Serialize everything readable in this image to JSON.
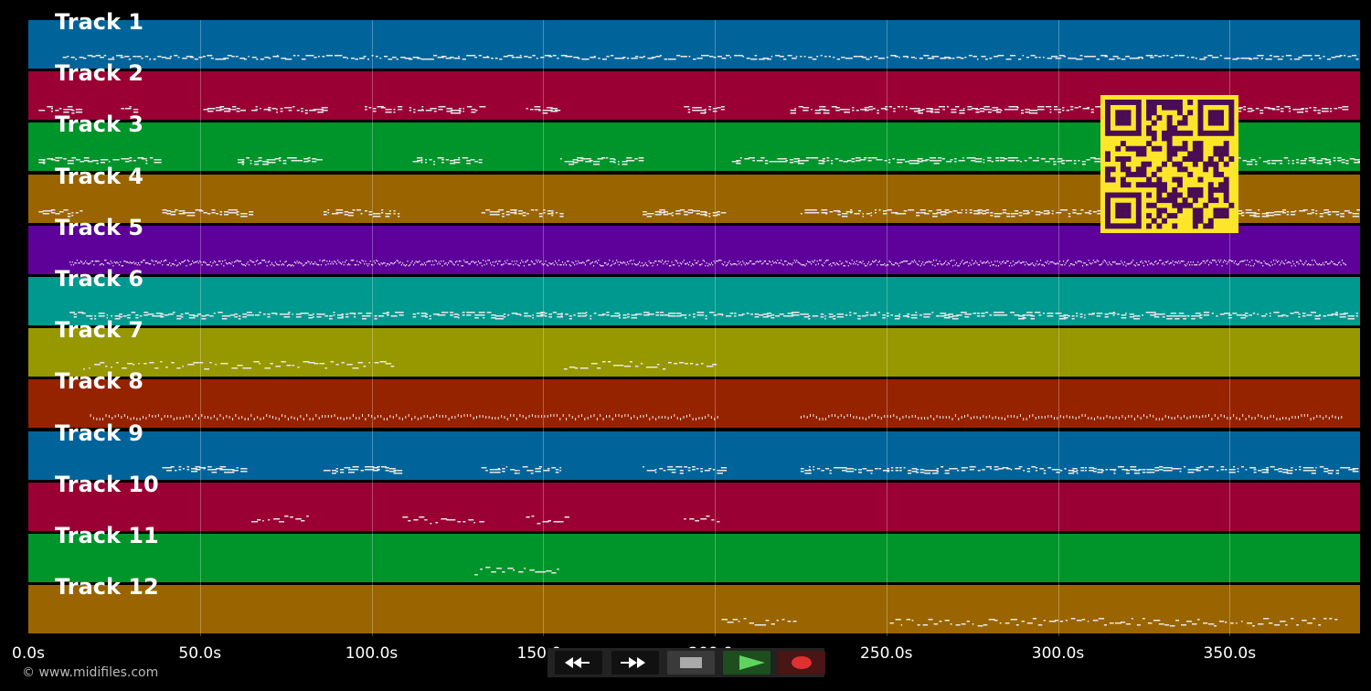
{
  "tracks": [
    {
      "name": "Track 1",
      "color": "#00649a",
      "pattern": "melody",
      "segments": [
        [
          10,
          388
        ]
      ]
    },
    {
      "name": "Track 2",
      "color": "#9a0034",
      "pattern": "chords",
      "segments": [
        [
          3,
          15
        ],
        [
          27,
          31
        ],
        [
          51,
          62
        ],
        [
          65,
          86
        ],
        [
          98,
          108
        ],
        [
          111,
          132
        ],
        [
          145,
          155
        ],
        [
          191,
          202
        ],
        [
          222,
          383
        ]
      ]
    },
    {
      "name": "Track 3",
      "color": "#00952a",
      "pattern": "chords",
      "segments": [
        [
          3,
          38
        ],
        [
          61,
          84
        ],
        [
          112,
          132
        ],
        [
          155,
          178
        ],
        [
          205,
          388
        ]
      ]
    },
    {
      "name": "Track 4",
      "color": "#9a6500",
      "pattern": "chords",
      "segments": [
        [
          3,
          15
        ],
        [
          39,
          65
        ],
        [
          86,
          108
        ],
        [
          132,
          155
        ],
        [
          179,
          202
        ],
        [
          225,
          388
        ]
      ]
    },
    {
      "name": "Track 5",
      "color": "#5e009a",
      "pattern": "dense",
      "segments": [
        [
          12,
          384
        ]
      ]
    },
    {
      "name": "Track 6",
      "color": "#00998f",
      "pattern": "chords",
      "segments": [
        [
          12,
          109
        ],
        [
          112,
          388
        ]
      ]
    },
    {
      "name": "Track 7",
      "color": "#979700",
      "pattern": "sparse",
      "segments": [
        [
          16,
          107
        ],
        [
          156,
          200
        ]
      ]
    },
    {
      "name": "Track 8",
      "color": "#962300",
      "pattern": "dots",
      "segments": [
        [
          18,
          201
        ],
        [
          225,
          383
        ]
      ]
    },
    {
      "name": "Track 9",
      "color": "#00649a",
      "pattern": "chords",
      "segments": [
        [
          39,
          62
        ],
        [
          86,
          108
        ],
        [
          132,
          155
        ],
        [
          179,
          202
        ],
        [
          225,
          388
        ]
      ]
    },
    {
      "name": "Track 10",
      "color": "#9a0034",
      "pattern": "sparse",
      "segments": [
        [
          65,
          81
        ],
        [
          109,
          132
        ],
        [
          145,
          157
        ],
        [
          191,
          202
        ]
      ]
    },
    {
      "name": "Track 11",
      "color": "#00952a",
      "pattern": "sparse",
      "segments": [
        [
          130,
          155
        ]
      ]
    },
    {
      "name": "Track 12",
      "color": "#9a6500",
      "pattern": "sparse",
      "segments": [
        [
          202,
          223
        ],
        [
          251,
          381
        ]
      ]
    }
  ],
  "timeline": {
    "ticks": [
      "0.0s",
      "50.0s",
      "100.0s",
      "150.0s",
      "200.0s",
      "250.0s",
      "300.0s",
      "350.0s"
    ],
    "tick_values": [
      0,
      50,
      100,
      150,
      200,
      250,
      300,
      350
    ],
    "duration_s": 388
  },
  "copyright": "© www.midifiles.com",
  "transport": {
    "buttons": [
      {
        "name": "rewind-button",
        "icon": "rewind-icon"
      },
      {
        "name": "fast-forward-button",
        "icon": "fast-forward-icon"
      },
      {
        "name": "stop-button",
        "icon": "stop-icon"
      },
      {
        "name": "play-button",
        "icon": "play-icon"
      },
      {
        "name": "record-button",
        "icon": "record-icon"
      }
    ]
  },
  "colors": {
    "background": "#000000",
    "note": "#e8e8e8",
    "qr_bg": "#fde62a",
    "qr_fg": "#4a0d55"
  }
}
